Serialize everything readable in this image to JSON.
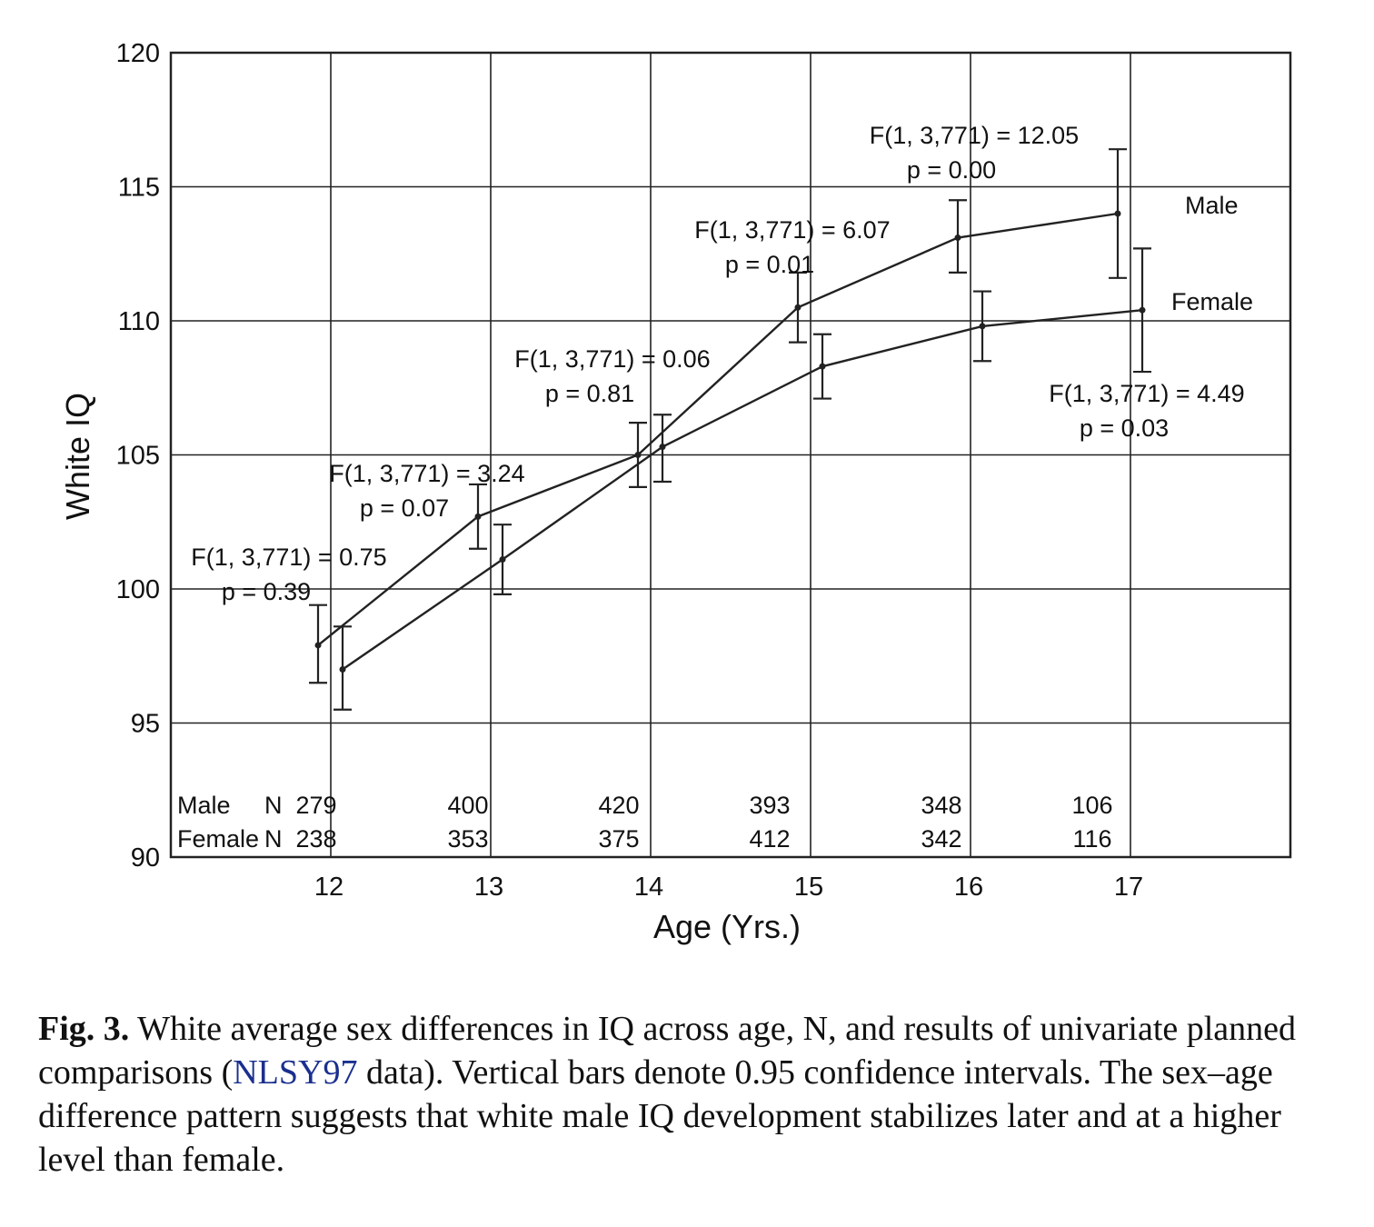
{
  "chart_data": {
    "type": "line",
    "xlabel": "Age (Yrs.)",
    "ylabel": "White IQ",
    "x": [
      12,
      13,
      14,
      15,
      16,
      17
    ],
    "xlim": [
      11,
      18
    ],
    "ylim": [
      90,
      120
    ],
    "yticks": [
      90,
      95,
      100,
      105,
      110,
      115,
      120
    ],
    "xticks": [
      12,
      13,
      14,
      15,
      16,
      17
    ],
    "grid": true,
    "series": [
      {
        "name": "Male",
        "values": [
          97.9,
          102.7,
          105.0,
          110.5,
          113.1,
          114.0
        ],
        "ci_low": [
          96.5,
          101.5,
          103.8,
          109.2,
          111.8,
          111.6
        ],
        "ci_high": [
          99.4,
          103.9,
          106.2,
          111.8,
          114.5,
          116.4
        ],
        "n": [
          "279",
          "400",
          "420",
          "393",
          "348",
          "106"
        ]
      },
      {
        "name": "Female",
        "values": [
          97.0,
          101.1,
          105.3,
          108.3,
          109.8,
          110.4
        ],
        "ci_low": [
          95.5,
          99.8,
          104.0,
          107.1,
          108.5,
          108.1
        ],
        "ci_high": [
          98.6,
          102.4,
          106.5,
          109.5,
          111.1,
          112.7
        ],
        "n": [
          "238",
          "353",
          "375",
          "412",
          "342",
          "116"
        ]
      }
    ],
    "annotations": [
      {
        "f": "F(1, 3,771) = 0.75",
        "p": "p = 0.39"
      },
      {
        "f": "F(1, 3,771) = 3.24",
        "p": "p = 0.07"
      },
      {
        "f": "F(1, 3,771) = 0.06",
        "p": "p = 0.81"
      },
      {
        "f": "F(1, 3,771) = 6.07",
        "p": "p = 0.01"
      },
      {
        "f": "F(1, 3,771) = 12.05",
        "p": "p = 0.00"
      },
      {
        "f": "F(1, 3,771) = 4.49",
        "p": "p = 0.03"
      }
    ],
    "n_row_labels": {
      "male": "Male",
      "female": "Female",
      "n": "N"
    }
  },
  "caption": {
    "label": "Fig. 3.",
    "text_before_link": " White average sex differences in IQ across age, N, and results of univariate planned comparisons (",
    "link": "NLSY97",
    "text_after_link": " data). Vertical bars denote 0.95 confidence intervals. The sex–age difference pattern suggests that white male IQ development stabilizes later and at a higher level than female."
  }
}
